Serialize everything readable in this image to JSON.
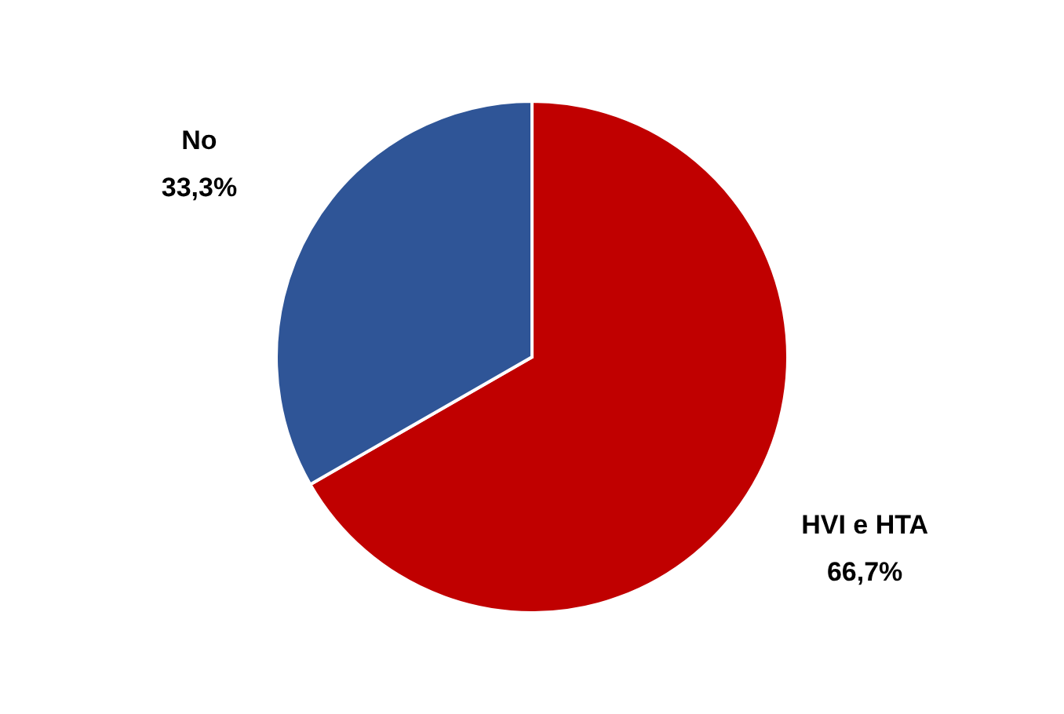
{
  "chart_data": {
    "type": "pie",
    "categories": [
      "HVI e HTA",
      "No"
    ],
    "values": [
      66.7,
      33.3
    ],
    "colors": [
      "#c00000",
      "#2f5597"
    ],
    "value_labels": [
      "66,7%",
      "33,3%"
    ]
  }
}
